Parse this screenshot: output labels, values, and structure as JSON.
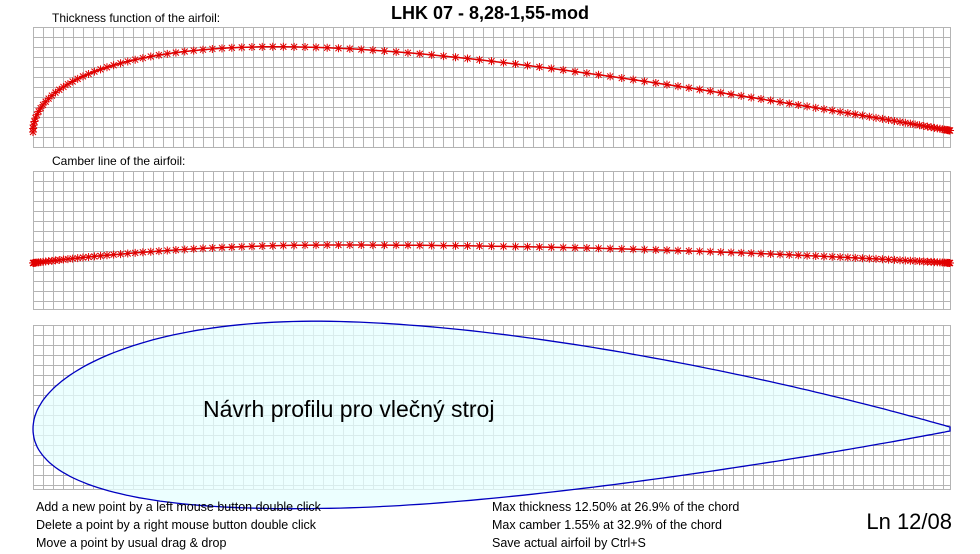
{
  "title": "LHK  07 - 8,28-1,55-mod",
  "thickness_panel": {
    "label": "Thickness function of the airfoil:"
  },
  "camber_panel": {
    "label": "Camber line of the airfoil:"
  },
  "profile_panel": {
    "overlay_text": "Návrh profilu pro vlečný stroj"
  },
  "help_left": [
    "Add a new point by a left mouse button double click",
    "Delete a point by a right mouse button double click",
    "Move a point by usual drag & drop"
  ],
  "help_right": [
    "Max thickness 12.50% at 26.9% of the chord",
    "Max camber 1.55% at 32.9% of the chord",
    "Save actual airfoil by Ctrl+S"
  ],
  "version": "Ln 12/08",
  "colors": {
    "points": "#e00000",
    "outline": "#0000c0",
    "fill": "#e6ffff",
    "grid": "#b4b4b4"
  },
  "airfoil": {
    "max_thickness_pct": 12.5,
    "max_thickness_pos_pct": 26.9,
    "max_camber_pct": 1.55,
    "max_camber_pos_pct": 32.9
  }
}
